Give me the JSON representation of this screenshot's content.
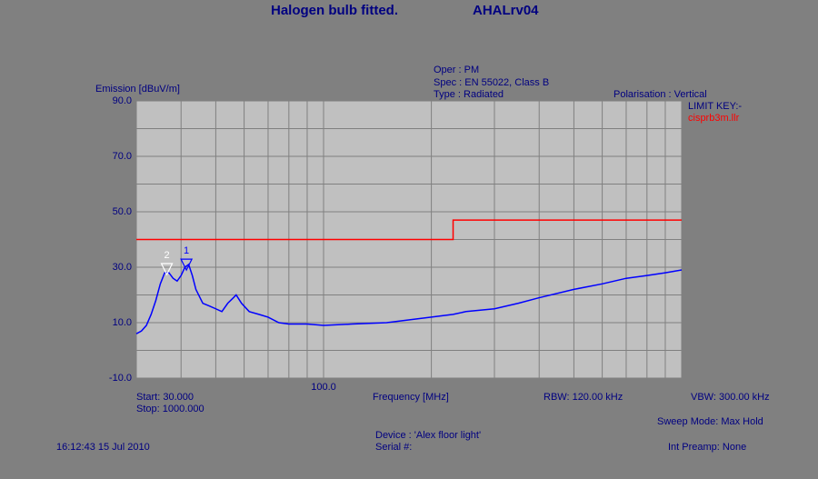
{
  "chart_data": {
    "type": "line",
    "title": "Halogen bulb fitted.",
    "subtitle": "AHALrv04",
    "ylabel": "Emission [dBuV/m]",
    "xlabel": "Frequency [MHz]",
    "log_x": true,
    "xlim": [
      30,
      1000
    ],
    "ylim": [
      -10,
      90
    ],
    "xticks": [
      {
        "value": 100,
        "label": "100.0"
      }
    ],
    "yticks": [
      {
        "value": 90,
        "label": "90.0"
      },
      {
        "value": 70,
        "label": "70.0"
      },
      {
        "value": 50,
        "label": "50.0"
      },
      {
        "value": 30,
        "label": "30.0"
      },
      {
        "value": 10,
        "label": "10.0"
      },
      {
        "value": -10,
        "label": "-10.0"
      }
    ],
    "xgrid": [
      30,
      40,
      50,
      60,
      70,
      80,
      90,
      100,
      200,
      300,
      400,
      500,
      600,
      700,
      800,
      900,
      1000
    ],
    "ygrid": [
      -10,
      0,
      10,
      20,
      30,
      40,
      50,
      60,
      70,
      80,
      90
    ],
    "grid": true,
    "legend_title": "LIMIT KEY:-",
    "series": [
      {
        "color": "#0000ff",
        "x": [
          30,
          31,
          32,
          33,
          34,
          35,
          36,
          37,
          38,
          39,
          40,
          41,
          42,
          43,
          44,
          46,
          48,
          50,
          52,
          54,
          56,
          57,
          59,
          62,
          66,
          70,
          75,
          80,
          90,
          100,
          120,
          150,
          200,
          230,
          250,
          300,
          350,
          400,
          500,
          600,
          700,
          800,
          900,
          1000
        ],
        "values": [
          6,
          7,
          9,
          13,
          18,
          24,
          28,
          28,
          26,
          25,
          27,
          30,
          31,
          27,
          22,
          17,
          16,
          15,
          14,
          17,
          19,
          20,
          17,
          14,
          13,
          12,
          10,
          9.5,
          9.5,
          9,
          9.5,
          10,
          12,
          13,
          14,
          15,
          17,
          19,
          22,
          24,
          26,
          27,
          28,
          29
        ]
      },
      {
        "name": "cisprb3m.llr",
        "color": "#ff0000",
        "x": [
          30,
          230,
          230,
          1000
        ],
        "values": [
          40,
          40,
          47,
          47
        ]
      }
    ],
    "markers": [
      {
        "label": "1",
        "x": 41.4,
        "y": 31.6
      },
      {
        "label": "2",
        "x": 36.5,
        "y": 30
      }
    ],
    "info": {
      "oper": "Oper : PM",
      "spec": "Spec : EN 55022, Class B",
      "type": "Type : Radiated",
      "polarisation": "Polarisation : Vertical",
      "start": "Start: 30.000",
      "stop": "Stop: 1000.000",
      "rbw": "RBW: 120.00 kHz",
      "vbw": "VBW: 300.00 kHz",
      "sweep": "Sweep Mode: Max Hold",
      "device": "Device : 'Alex floor light'",
      "serial": "Serial #:",
      "preamp": "Int Preamp: None",
      "timestamp": "16:12:43 15 Jul 2010"
    }
  }
}
